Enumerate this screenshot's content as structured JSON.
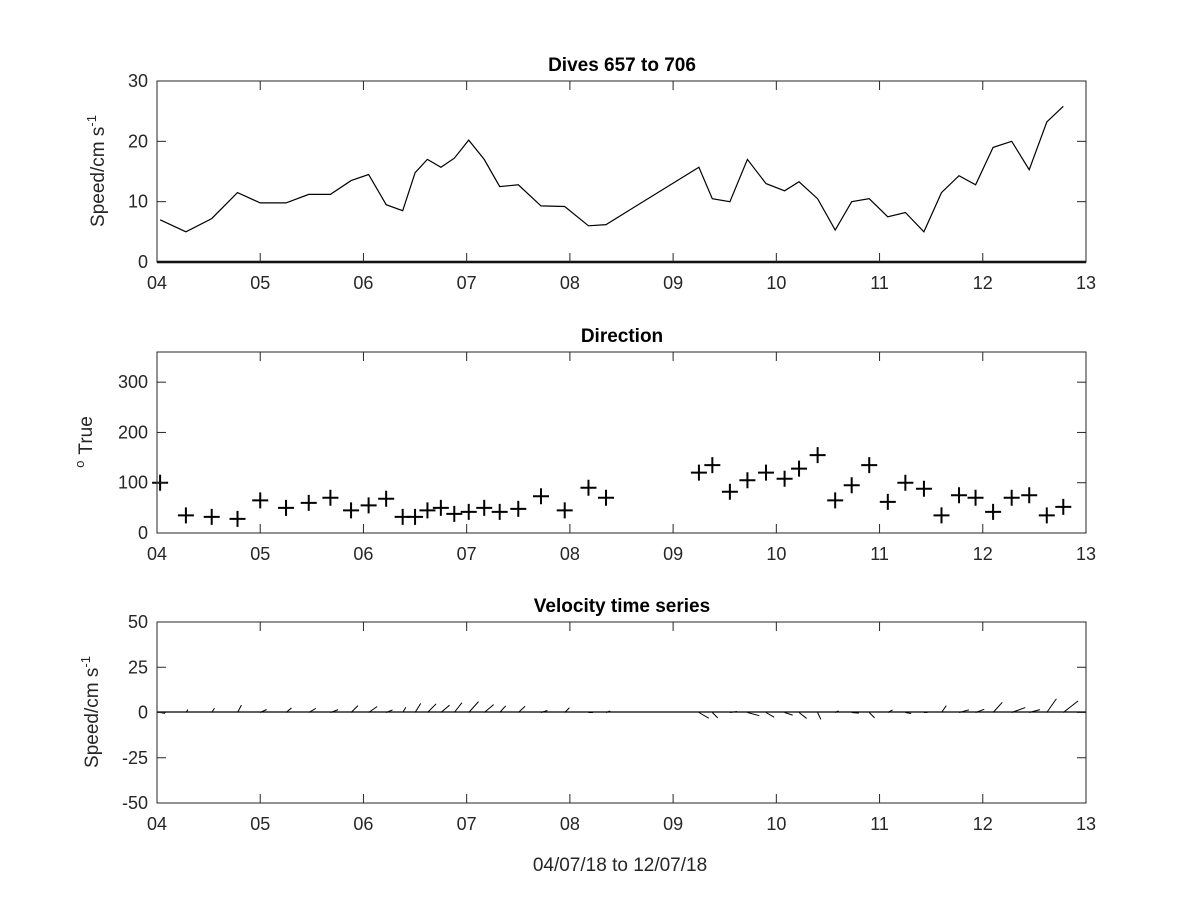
{
  "chart_data": [
    {
      "type": "line",
      "title": "Dives 657 to 706",
      "ylabel": "Speed/cm s",
      "ylabel_sup": "-1",
      "xlim": [
        4,
        13
      ],
      "ylim": [
        0,
        30
      ],
      "xticks": [
        "04",
        "05",
        "06",
        "07",
        "08",
        "09",
        "10",
        "11",
        "12",
        "13"
      ],
      "yticks": [
        "0",
        "10",
        "20",
        "30"
      ],
      "x": [
        4.03,
        4.28,
        4.53,
        4.78,
        5.0,
        5.25,
        5.47,
        5.68,
        5.88,
        6.05,
        6.22,
        6.38,
        6.5,
        6.62,
        6.75,
        6.88,
        7.02,
        7.17,
        7.32,
        7.5,
        7.72,
        7.95,
        8.18,
        8.35,
        9.25,
        9.38,
        9.55,
        9.72,
        9.9,
        10.08,
        10.22,
        10.4,
        10.57,
        10.73,
        10.9,
        11.08,
        11.25,
        11.43,
        11.6,
        11.77,
        11.93,
        12.1,
        12.28,
        12.45,
        12.62,
        12.78
      ],
      "y": [
        7.0,
        5.0,
        7.2,
        11.5,
        9.8,
        9.8,
        11.2,
        11.2,
        13.5,
        14.5,
        9.5,
        8.5,
        14.8,
        17.0,
        15.7,
        17.2,
        20.2,
        17.0,
        12.5,
        12.8,
        9.3,
        9.2,
        6.0,
        6.2,
        15.7,
        10.5,
        10.0,
        17.0,
        13.0,
        11.8,
        13.3,
        10.5,
        5.3,
        10.0,
        10.5,
        7.5,
        8.2,
        5.0,
        11.5,
        14.3,
        12.8,
        19.0,
        20.0,
        15.3,
        23.2,
        25.8
      ]
    },
    {
      "type": "scatter",
      "title": "Direction",
      "ylabel": "True",
      "ylabel_pre": "o",
      "marker": "+",
      "xlim": [
        4,
        13
      ],
      "ylim": [
        0,
        360
      ],
      "xticks": [
        "04",
        "05",
        "06",
        "07",
        "08",
        "09",
        "10",
        "11",
        "12",
        "13"
      ],
      "yticks": [
        "0",
        "100",
        "200",
        "300"
      ],
      "x": [
        4.03,
        4.28,
        4.53,
        4.78,
        5.0,
        5.25,
        5.47,
        5.68,
        5.88,
        6.05,
        6.22,
        6.38,
        6.5,
        6.62,
        6.75,
        6.88,
        7.02,
        7.17,
        7.32,
        7.5,
        7.72,
        7.95,
        8.18,
        8.35,
        9.25,
        9.38,
        9.55,
        9.72,
        9.9,
        10.08,
        10.22,
        10.4,
        10.57,
        10.73,
        10.9,
        11.08,
        11.25,
        11.43,
        11.6,
        11.77,
        11.93,
        12.1,
        12.28,
        12.45,
        12.62,
        12.78
      ],
      "y": [
        100,
        35,
        32,
        28,
        65,
        50,
        60,
        70,
        45,
        55,
        68,
        32,
        32,
        45,
        50,
        38,
        42,
        50,
        42,
        48,
        73,
        45,
        90,
        70,
        120,
        135,
        82,
        105,
        120,
        108,
        128,
        155,
        65,
        95,
        135,
        62,
        100,
        88,
        35,
        75,
        70,
        42,
        70,
        75,
        35,
        52
      ]
    },
    {
      "type": "quiver",
      "title": "Velocity time series",
      "ylabel": "Speed/cm s",
      "ylabel_sup": "-1",
      "xlabel": "04/07/18 to 12/07/18",
      "xlim": [
        4,
        13
      ],
      "ylim": [
        -50,
        50
      ],
      "xticks": [
        "04",
        "05",
        "06",
        "07",
        "08",
        "09",
        "10",
        "11",
        "12",
        "13"
      ],
      "yticks": [
        "-50",
        "-25",
        "0",
        "25",
        "50"
      ]
    }
  ]
}
